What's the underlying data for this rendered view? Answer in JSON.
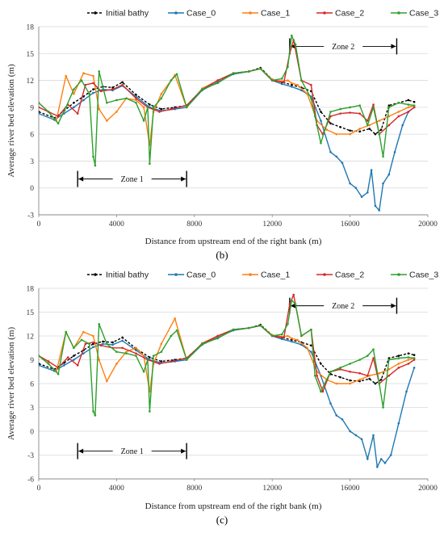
{
  "chart_data": [
    {
      "type": "line",
      "panel_label": "(b)",
      "xlabel": "Distance from upstream end of the right bank (m)",
      "ylabel": "Average river bed elevation (m)",
      "xlim": [
        0,
        20000
      ],
      "ylim": [
        -3,
        18
      ],
      "xticks": [
        "0",
        "4000",
        "8000",
        "12000",
        "16000",
        "20000"
      ],
      "xtick_values": [
        0,
        4000,
        8000,
        12000,
        16000,
        20000
      ],
      "yticks": [
        "-3",
        "0",
        "3",
        "6",
        "9",
        "12",
        "15",
        "18"
      ],
      "ytick_values": [
        -3,
        0,
        3,
        6,
        9,
        12,
        15,
        18
      ],
      "grid": "horizontal",
      "legend": "top",
      "zones": [
        {
          "label": "Zone 1",
          "x": [
            2000,
            7600
          ],
          "y": 1.0
        },
        {
          "label": "Zone 2",
          "x": [
            12900,
            18400
          ],
          "y": 15.8
        }
      ],
      "series": [
        {
          "name": "Initial bathy",
          "color": "#000000",
          "dashed": true,
          "x": [
            0,
            800,
            1300,
            1800,
            2300,
            2800,
            3300,
            3800,
            4300,
            5000,
            5700,
            6300,
            7000,
            7600,
            8400,
            9200,
            10000,
            10800,
            11400,
            12000,
            12500,
            13000,
            13500,
            14000,
            14500,
            15000,
            15500,
            16000,
            16500,
            17000,
            17300,
            17600,
            18000,
            18500,
            19000,
            19300
          ],
          "y": [
            8.5,
            7.8,
            8.6,
            9.5,
            10.2,
            11.0,
            11.3,
            11.2,
            11.8,
            10.4,
            9.3,
            8.8,
            9.0,
            9.2,
            11.0,
            12.0,
            12.8,
            13.0,
            13.4,
            12.1,
            11.8,
            11.5,
            11.2,
            10.8,
            8.5,
            7.2,
            6.8,
            6.4,
            6.3,
            6.6,
            6.0,
            6.5,
            9.2,
            9.5,
            9.8,
            9.6
          ]
        },
        {
          "name": "Case_0",
          "color": "#1f77b4",
          "dashed": false,
          "x": [
            0,
            800,
            1300,
            1800,
            2300,
            2800,
            3300,
            3800,
            4300,
            5000,
            5700,
            6300,
            7000,
            7600,
            8400,
            9200,
            10000,
            10800,
            11400,
            12000,
            12500,
            13000,
            13500,
            14000,
            14500,
            15000,
            15300,
            15600,
            16000,
            16300,
            16600,
            16900,
            17100,
            17300,
            17500,
            17700,
            18000,
            18300,
            18700,
            19000,
            19300
          ],
          "y": [
            8.3,
            7.6,
            8.3,
            9.0,
            9.8,
            10.6,
            11.0,
            10.9,
            11.4,
            10.2,
            9.0,
            8.6,
            8.8,
            9.0,
            10.9,
            11.8,
            12.7,
            13.0,
            13.3,
            12.0,
            11.6,
            11.3,
            10.9,
            10.2,
            7.5,
            4.0,
            3.5,
            2.8,
            0.5,
            0.0,
            -1.0,
            -0.5,
            2.0,
            -2.0,
            -2.5,
            0.5,
            1.5,
            4.0,
            7.0,
            8.5,
            9.0
          ]
        },
        {
          "name": "Case_1",
          "color": "#ff7f0e",
          "dashed": false,
          "x": [
            0,
            500,
            900,
            1400,
            1800,
            2300,
            2800,
            3100,
            3500,
            4000,
            4500,
            5000,
            5400,
            5700,
            5900,
            6300,
            7000,
            7600,
            8400,
            9200,
            10000,
            10800,
            11400,
            12000,
            12500,
            12800,
            13000,
            13300,
            13800,
            14300,
            14800,
            15300,
            16000,
            16500,
            17000,
            17500,
            18000,
            18500,
            19000,
            19300
          ],
          "y": [
            9.5,
            8.5,
            7.5,
            12.5,
            10.5,
            12.8,
            12.5,
            8.8,
            7.5,
            8.5,
            10.0,
            9.8,
            9.0,
            4.8,
            8.5,
            10.5,
            12.6,
            9.0,
            11.1,
            12.0,
            12.8,
            13.0,
            13.3,
            12.1,
            11.9,
            12.0,
            11.7,
            11.5,
            10.5,
            7.5,
            6.5,
            6.0,
            6.0,
            6.6,
            7.0,
            7.5,
            8.0,
            8.5,
            9.0,
            9.2
          ]
        },
        {
          "name": "Case_2",
          "color": "#d62728",
          "dashed": false,
          "x": [
            0,
            500,
            1000,
            1500,
            2000,
            2400,
            2800,
            3200,
            3800,
            4300,
            5000,
            5600,
            6200,
            6800,
            7600,
            8400,
            9200,
            10000,
            10800,
            11400,
            12000,
            12600,
            12900,
            13100,
            13500,
            14000,
            14300,
            14600,
            15000,
            15500,
            16000,
            16500,
            16900,
            17200,
            17500,
            18000,
            18500,
            19000,
            19300
          ],
          "y": [
            9.0,
            8.5,
            8.0,
            9.3,
            8.3,
            11.5,
            11.7,
            10.8,
            11.0,
            11.5,
            10.0,
            9.0,
            8.5,
            8.8,
            9.2,
            11.0,
            12.0,
            12.8,
            13.0,
            13.3,
            12.0,
            11.8,
            15.0,
            16.5,
            12.0,
            11.5,
            7.0,
            6.0,
            8.0,
            8.3,
            8.4,
            8.3,
            7.5,
            9.3,
            6.0,
            7.0,
            8.0,
            8.5,
            9.0
          ]
        },
        {
          "name": "Case_3",
          "color": "#2ca02c",
          "dashed": false,
          "x": [
            0,
            500,
            1000,
            1400,
            1800,
            2200,
            2600,
            2800,
            2900,
            3100,
            3500,
            4000,
            4500,
            5000,
            5400,
            5600,
            5700,
            5900,
            6300,
            6800,
            7100,
            7600,
            8400,
            9200,
            10000,
            10800,
            11400,
            12000,
            12500,
            12800,
            13000,
            13200,
            13500,
            14000,
            14200,
            14500,
            15000,
            15500,
            16000,
            16500,
            16900,
            17200,
            17500,
            17700,
            18000,
            18500,
            19000,
            19300
          ],
          "y": [
            9.5,
            8.5,
            7.2,
            9.0,
            11.0,
            12.0,
            10.5,
            3.5,
            2.5,
            13.0,
            9.5,
            9.8,
            10.0,
            9.5,
            7.5,
            9.0,
            2.7,
            9.0,
            10.0,
            12.0,
            12.7,
            9.0,
            11.0,
            11.7,
            12.8,
            13.0,
            13.3,
            12.0,
            12.2,
            13.5,
            17.0,
            16.0,
            12.0,
            10.0,
            8.0,
            5.0,
            8.5,
            8.8,
            9.0,
            9.2,
            7.0,
            9.0,
            6.0,
            3.5,
            9.0,
            9.5,
            9.3,
            9.2
          ]
        }
      ]
    },
    {
      "type": "line",
      "panel_label": "(c)",
      "xlabel": "Distance from upstream end of the right bank (m)",
      "ylabel": "Average river bed elevation (m)",
      "xlim": [
        0,
        20000
      ],
      "ylim": [
        -6,
        18
      ],
      "xticks": [
        "0",
        "4000",
        "8000",
        "12000",
        "16000",
        "20000"
      ],
      "xtick_values": [
        0,
        4000,
        8000,
        12000,
        16000,
        20000
      ],
      "yticks": [
        "-6",
        "-3",
        "0",
        "3",
        "6",
        "9",
        "12",
        "15",
        "18"
      ],
      "ytick_values": [
        -6,
        -3,
        0,
        3,
        6,
        9,
        12,
        15,
        18
      ],
      "grid": "horizontal",
      "legend": "top",
      "zones": [
        {
          "label": "Zone 1",
          "x": [
            2000,
            7600
          ],
          "y": -2.5
        },
        {
          "label": "Zone 2",
          "x": [
            12900,
            18400
          ],
          "y": 15.8
        }
      ],
      "series": [
        {
          "name": "Initial bathy",
          "color": "#000000",
          "dashed": true,
          "x": [
            0,
            800,
            1300,
            1800,
            2300,
            2800,
            3300,
            3800,
            4300,
            5000,
            5700,
            6300,
            7000,
            7600,
            8400,
            9200,
            10000,
            10800,
            11400,
            12000,
            12500,
            13000,
            13500,
            14000,
            14500,
            15000,
            15500,
            16000,
            16500,
            17000,
            17300,
            17600,
            18000,
            18500,
            19000,
            19300
          ],
          "y": [
            8.5,
            7.8,
            8.6,
            9.5,
            10.2,
            11.0,
            11.3,
            11.2,
            11.8,
            10.4,
            9.3,
            8.8,
            9.0,
            9.2,
            11.0,
            12.0,
            12.8,
            13.0,
            13.4,
            12.1,
            11.8,
            11.5,
            11.2,
            10.8,
            8.5,
            7.2,
            6.8,
            6.4,
            6.3,
            6.6,
            6.0,
            6.5,
            9.2,
            9.5,
            9.8,
            9.6
          ]
        },
        {
          "name": "Case_0",
          "color": "#1f77b4",
          "dashed": false,
          "x": [
            0,
            800,
            1300,
            1800,
            2300,
            2800,
            3300,
            3800,
            4300,
            5000,
            5700,
            6300,
            7000,
            7600,
            8400,
            9200,
            10000,
            10800,
            11400,
            12000,
            12500,
            13000,
            13500,
            14000,
            14500,
            15000,
            15300,
            15600,
            16000,
            16300,
            16600,
            16900,
            17200,
            17400,
            17600,
            17800,
            18100,
            18500,
            18900,
            19300
          ],
          "y": [
            8.3,
            7.6,
            8.3,
            9.0,
            9.8,
            10.6,
            11.0,
            10.9,
            11.4,
            10.2,
            9.0,
            8.6,
            8.8,
            9.0,
            10.9,
            11.8,
            12.7,
            13.0,
            13.3,
            12.0,
            11.6,
            11.3,
            10.9,
            10.0,
            7.0,
            3.5,
            2.0,
            1.5,
            0.0,
            -0.5,
            -1.0,
            -3.5,
            -0.5,
            -4.5,
            -3.5,
            -4.0,
            -3.0,
            1.0,
            5.0,
            8.0
          ]
        },
        {
          "name": "Case_1",
          "color": "#ff7f0e",
          "dashed": false,
          "x": [
            0,
            500,
            900,
            1400,
            1800,
            2300,
            2800,
            3100,
            3500,
            4000,
            4500,
            5000,
            5400,
            5700,
            5900,
            6300,
            7000,
            7600,
            8400,
            9200,
            10000,
            10800,
            11400,
            12000,
            12500,
            12800,
            13000,
            13300,
            13800,
            14300,
            14800,
            15300,
            16000,
            16500,
            17000,
            17500,
            18000,
            18500,
            19000,
            19300
          ],
          "y": [
            9.5,
            8.5,
            7.5,
            12.5,
            10.5,
            12.5,
            12.0,
            9.0,
            6.3,
            8.5,
            10.0,
            10.5,
            9.5,
            5.0,
            8.5,
            11.0,
            14.2,
            9.0,
            11.1,
            12.0,
            12.8,
            13.0,
            13.3,
            12.1,
            11.9,
            12.0,
            11.7,
            11.5,
            10.5,
            7.5,
            6.5,
            6.0,
            6.0,
            6.5,
            7.0,
            7.3,
            7.8,
            8.5,
            9.0,
            9.2
          ]
        },
        {
          "name": "Case_2",
          "color": "#d62728",
          "dashed": false,
          "x": [
            0,
            500,
            1000,
            1500,
            2000,
            2400,
            2800,
            3200,
            3800,
            4300,
            5000,
            5600,
            6200,
            6800,
            7600,
            8400,
            9200,
            10000,
            10800,
            11400,
            12000,
            12600,
            12900,
            13100,
            13500,
            14000,
            14300,
            14600,
            15000,
            15500,
            16000,
            16500,
            16900,
            17200,
            17500,
            18000,
            18500,
            19000,
            19300
          ],
          "y": [
            9.5,
            8.8,
            8.0,
            9.3,
            8.3,
            11.0,
            11.2,
            10.8,
            10.5,
            10.5,
            9.8,
            9.0,
            8.5,
            8.8,
            9.2,
            11.0,
            12.0,
            12.8,
            13.0,
            13.3,
            12.0,
            11.8,
            16.0,
            17.2,
            12.0,
            12.8,
            7.0,
            5.0,
            7.5,
            7.8,
            7.5,
            7.3,
            7.0,
            9.2,
            6.0,
            7.0,
            8.0,
            8.5,
            9.0
          ]
        },
        {
          "name": "Case_3",
          "color": "#2ca02c",
          "dashed": false,
          "x": [
            0,
            500,
            1000,
            1400,
            1800,
            2200,
            2600,
            2800,
            2900,
            3100,
            3500,
            4000,
            4500,
            5000,
            5400,
            5600,
            5700,
            5900,
            6300,
            6800,
            7100,
            7600,
            8400,
            9200,
            10000,
            10800,
            11400,
            12000,
            12500,
            12800,
            13000,
            13200,
            13500,
            14000,
            14200,
            14500,
            15000,
            15500,
            16000,
            16500,
            16900,
            17200,
            17500,
            17700,
            18000,
            18500,
            19000,
            19300
          ],
          "y": [
            9.5,
            8.5,
            7.2,
            12.5,
            10.5,
            11.5,
            11.0,
            2.5,
            2.0,
            13.5,
            11.0,
            10.0,
            9.8,
            9.5,
            7.5,
            9.0,
            2.5,
            9.5,
            10.0,
            12.0,
            12.7,
            9.0,
            11.0,
            11.7,
            12.8,
            13.0,
            13.3,
            12.0,
            12.2,
            13.5,
            16.5,
            16.0,
            12.0,
            12.8,
            7.0,
            5.0,
            7.5,
            8.0,
            8.5,
            9.0,
            9.5,
            10.3,
            6.0,
            3.0,
            9.0,
            9.2,
            9.3,
            9.2
          ]
        }
      ]
    }
  ]
}
